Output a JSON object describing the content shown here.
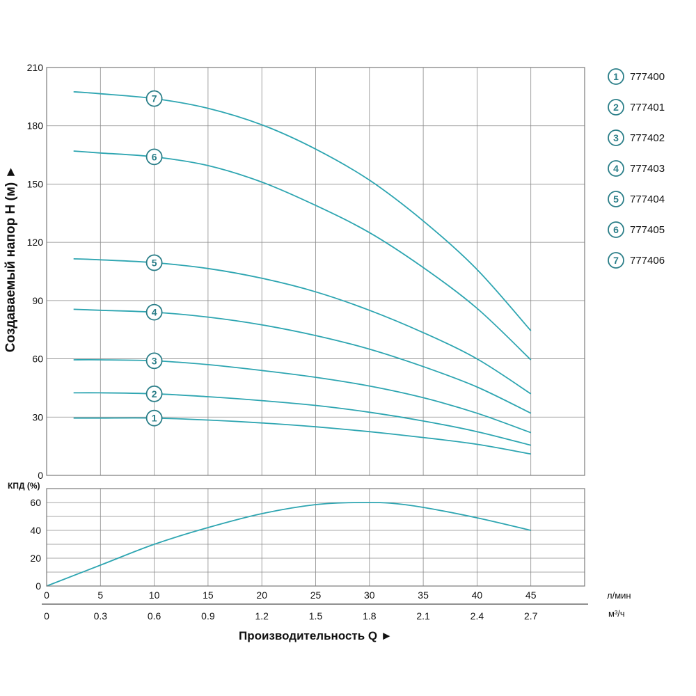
{
  "colors": {
    "curve": "#2da5b1",
    "marker": "#2a7e88",
    "grid": "#8a8a8a",
    "frame": "#7a7a7a"
  },
  "chart_data": [
    {
      "type": "line",
      "ylabel": "Создаваемый напор H (м) ►",
      "xlim": [
        0,
        50
      ],
      "ylim": [
        0,
        210
      ],
      "yticks": [
        0,
        30,
        60,
        90,
        120,
        150,
        180,
        210
      ],
      "grid": true,
      "series": [
        {
          "name": "1",
          "x": [
            2.5,
            5,
            10,
            15,
            20,
            25,
            30,
            35,
            40,
            45
          ],
          "y": [
            29.5,
            29.5,
            29.5,
            28.5,
            27,
            25,
            22.5,
            19.5,
            16,
            11
          ]
        },
        {
          "name": "2",
          "x": [
            2.5,
            5,
            10,
            15,
            20,
            25,
            30,
            35,
            40,
            45
          ],
          "y": [
            42.5,
            42.5,
            42,
            40.5,
            38.5,
            36,
            32.5,
            28,
            22.5,
            15.5
          ]
        },
        {
          "name": "3",
          "x": [
            2.5,
            5,
            10,
            15,
            20,
            25,
            30,
            35,
            40,
            45
          ],
          "y": [
            59.5,
            59.5,
            59,
            57,
            54,
            50.5,
            46,
            40,
            32,
            22
          ]
        },
        {
          "name": "4",
          "x": [
            2.5,
            5,
            10,
            15,
            20,
            25,
            30,
            35,
            40,
            45
          ],
          "y": [
            85.5,
            85,
            84,
            81.5,
            77.5,
            72,
            65,
            56,
            45.5,
            32
          ]
        },
        {
          "name": "5",
          "x": [
            2.5,
            5,
            10,
            15,
            20,
            25,
            30,
            35,
            40,
            45
          ],
          "y": [
            111.5,
            111,
            109.5,
            106.5,
            101.5,
            94.5,
            85,
            73.5,
            60,
            42
          ]
        },
        {
          "name": "6",
          "x": [
            2.5,
            5,
            10,
            15,
            20,
            25,
            30,
            35,
            40,
            45
          ],
          "y": [
            167,
            166,
            164,
            159.5,
            151,
            139,
            125,
            107,
            86,
            59.5
          ]
        },
        {
          "name": "7",
          "x": [
            2.5,
            5,
            10,
            15,
            20,
            25,
            30,
            35,
            40,
            45
          ],
          "y": [
            197.5,
            196.5,
            194,
            189,
            180.5,
            168,
            152,
            131,
            106,
            74.5
          ]
        }
      ],
      "markers": [
        {
          "label": "1",
          "x": 10,
          "y": 29.5
        },
        {
          "label": "2",
          "x": 10,
          "y": 42
        },
        {
          "label": "3",
          "x": 10,
          "y": 59
        },
        {
          "label": "4",
          "x": 10,
          "y": 84
        },
        {
          "label": "5",
          "x": 10,
          "y": 109.5
        },
        {
          "label": "6",
          "x": 10,
          "y": 164
        },
        {
          "label": "7",
          "x": 10,
          "y": 194
        }
      ]
    },
    {
      "type": "line",
      "ylabel": "КПД (%)",
      "xlim": [
        0,
        50
      ],
      "ylim": [
        0,
        70
      ],
      "yticks": [
        0,
        20,
        40,
        60
      ],
      "xlabel": "Производительность Q ►",
      "x_ticks_lmin": [
        "0",
        "5",
        "10",
        "15",
        "20",
        "25",
        "30",
        "35",
        "40",
        "45"
      ],
      "x_ticks_m3h": [
        "0",
        "0.3",
        "0.6",
        "0.9",
        "1.2",
        "1.5",
        "1.8",
        "2.1",
        "2.4",
        "2.7"
      ],
      "x_unit_lmin": "л/мин",
      "x_unit_m3h": "м³/ч",
      "series": [
        {
          "name": "",
          "x": [
            0,
            5,
            10,
            15,
            20,
            25,
            29,
            32,
            35,
            40,
            45
          ],
          "y": [
            0,
            15,
            30,
            42,
            52,
            58.5,
            60,
            59.5,
            56.5,
            49,
            40
          ]
        }
      ]
    }
  ],
  "legend": [
    {
      "num": "1",
      "code": "777400"
    },
    {
      "num": "2",
      "code": "777401"
    },
    {
      "num": "3",
      "code": "777402"
    },
    {
      "num": "4",
      "code": "777403"
    },
    {
      "num": "5",
      "code": "777404"
    },
    {
      "num": "6",
      "code": "777405"
    },
    {
      "num": "7",
      "code": "777406"
    }
  ]
}
